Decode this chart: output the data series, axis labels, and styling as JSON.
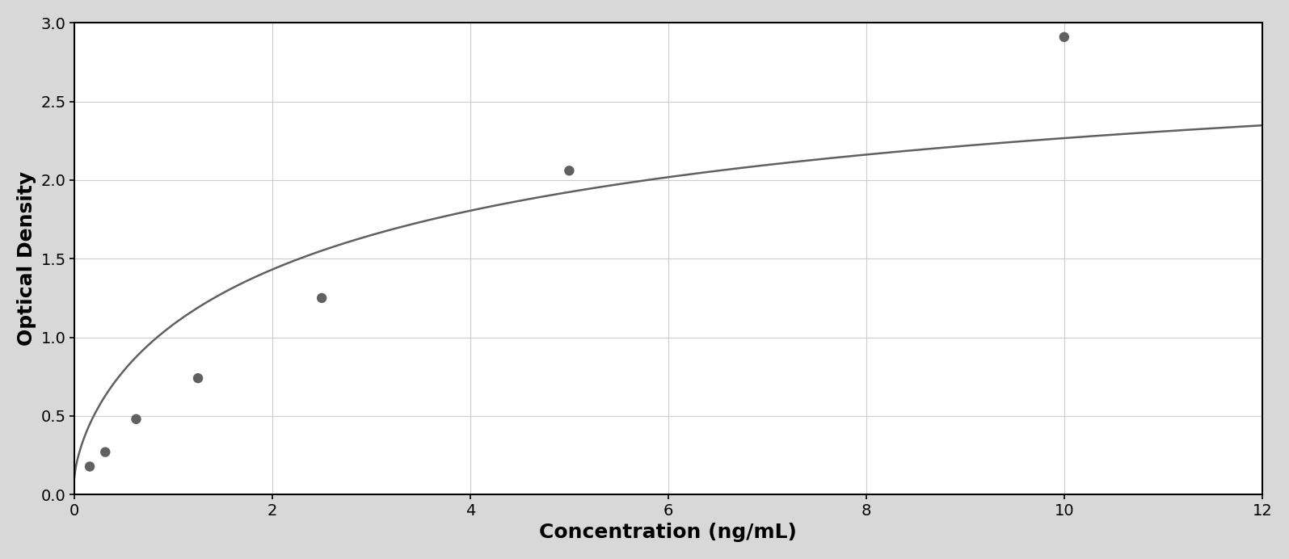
{
  "x_data": [
    0.156,
    0.313,
    0.625,
    1.25,
    2.5,
    5.0,
    10.0
  ],
  "y_data": [
    0.178,
    0.27,
    0.48,
    0.74,
    1.25,
    2.06,
    2.91
  ],
  "dot_color": "#606060",
  "line_color": "#606060",
  "xlabel": "Concentration (ng/mL)",
  "ylabel": "Optical Density",
  "xlim": [
    0,
    12
  ],
  "ylim": [
    0,
    3
  ],
  "xticks": [
    0,
    2,
    4,
    6,
    8,
    10,
    12
  ],
  "yticks": [
    0,
    0.5,
    1.0,
    1.5,
    2.0,
    2.5,
    3.0
  ],
  "grid_color": "#cccccc",
  "background_color": "#ffffff",
  "border_color": "#000000",
  "dot_size": 80,
  "line_width": 1.8,
  "xlabel_fontsize": 18,
  "ylabel_fontsize": 18,
  "tick_fontsize": 14,
  "fig_bg_color": "#d8d8d8"
}
